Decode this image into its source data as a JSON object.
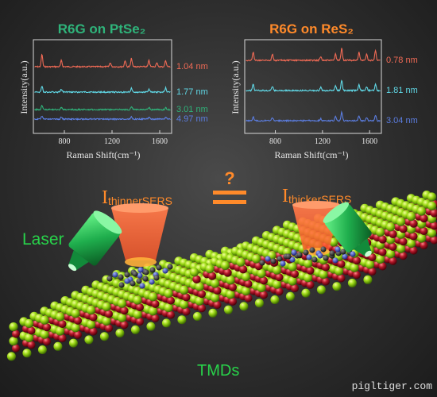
{
  "chart_data": [
    {
      "type": "line",
      "title": "R6G on PtSe₂",
      "xlabel": "Raman Shift(cm⁻¹)",
      "ylabel": "Intensity(a.u.)",
      "xlim": [
        540,
        1700
      ],
      "xticks": [
        "800",
        "1200",
        "1600"
      ],
      "series": [
        {
          "name": "1.04 nm",
          "color": "#f06a55",
          "peaks": [
            [
              612,
              6
            ],
            [
              775,
              3
            ],
            [
              1185,
              2
            ],
            [
              1310,
              3
            ],
            [
              1363,
              4
            ],
            [
              1510,
              3
            ],
            [
              1575,
              2
            ],
            [
              1650,
              3
            ]
          ]
        },
        {
          "name": "1.77 nm",
          "color": "#60d8e6",
          "peaks": [
            [
              612,
              3
            ],
            [
              775,
              1.5
            ],
            [
              1363,
              2
            ],
            [
              1510,
              1.5
            ],
            [
              1650,
              2
            ]
          ]
        },
        {
          "name": "3.01 nm",
          "color": "#2fb37a",
          "peaks": [
            [
              612,
              2
            ],
            [
              775,
              1
            ],
            [
              1363,
              1.5
            ],
            [
              1510,
              1
            ],
            [
              1650,
              1
            ]
          ]
        },
        {
          "name": "4.97 nm",
          "color": "#5b7de0",
          "peaks": [
            [
              612,
              1.5
            ],
            [
              775,
              1
            ],
            [
              1363,
              1
            ],
            [
              1510,
              1
            ],
            [
              1650,
              1
            ]
          ]
        }
      ]
    },
    {
      "type": "line",
      "title": "R6G on ReS₂",
      "xlabel": "Raman Shift(cm⁻¹)",
      "ylabel": "Intensity(a.u.)",
      "xlim": [
        540,
        1700
      ],
      "xticks": [
        "800",
        "1200",
        "1600"
      ],
      "series": [
        {
          "name": "0.78 nm",
          "color": "#f06a55",
          "peaks": [
            [
              612,
              4
            ],
            [
              775,
              3
            ],
            [
              1185,
              2
            ],
            [
              1310,
              3
            ],
            [
              1363,
              6
            ],
            [
              1510,
              4
            ],
            [
              1575,
              3
            ],
            [
              1650,
              5
            ]
          ]
        },
        {
          "name": "1.81 nm",
          "color": "#60d8e6",
          "peaks": [
            [
              612,
              3
            ],
            [
              775,
              2
            ],
            [
              1185,
              1.5
            ],
            [
              1310,
              2.5
            ],
            [
              1363,
              5
            ],
            [
              1510,
              3
            ],
            [
              1575,
              2
            ],
            [
              1650,
              3
            ]
          ]
        },
        {
          "name": "3.04 nm",
          "color": "#5b7de0",
          "peaks": [
            [
              612,
              2
            ],
            [
              775,
              1.5
            ],
            [
              1185,
              1
            ],
            [
              1310,
              2
            ],
            [
              1363,
              4
            ],
            [
              1510,
              2.5
            ],
            [
              1575,
              1.5
            ],
            [
              1650,
              2.5
            ]
          ]
        }
      ]
    }
  ],
  "diagram": {
    "question_mark": "?",
    "equal_sign": "≟",
    "intensity_symbol": "I",
    "thinner_subscript": "thinnerSERS",
    "thicker_subscript": "thickerSERS",
    "laser_label": "Laser",
    "tmds_label": "TMDs",
    "watermark": "pigltiger.com"
  },
  "colors": {
    "orange": "#ff8a2a",
    "green_label": "#28d24a",
    "cone": "#ff6a3a",
    "laser_body": "#1fae4d",
    "atom_green": "#9edb17",
    "atom_red": "#b5172a"
  }
}
